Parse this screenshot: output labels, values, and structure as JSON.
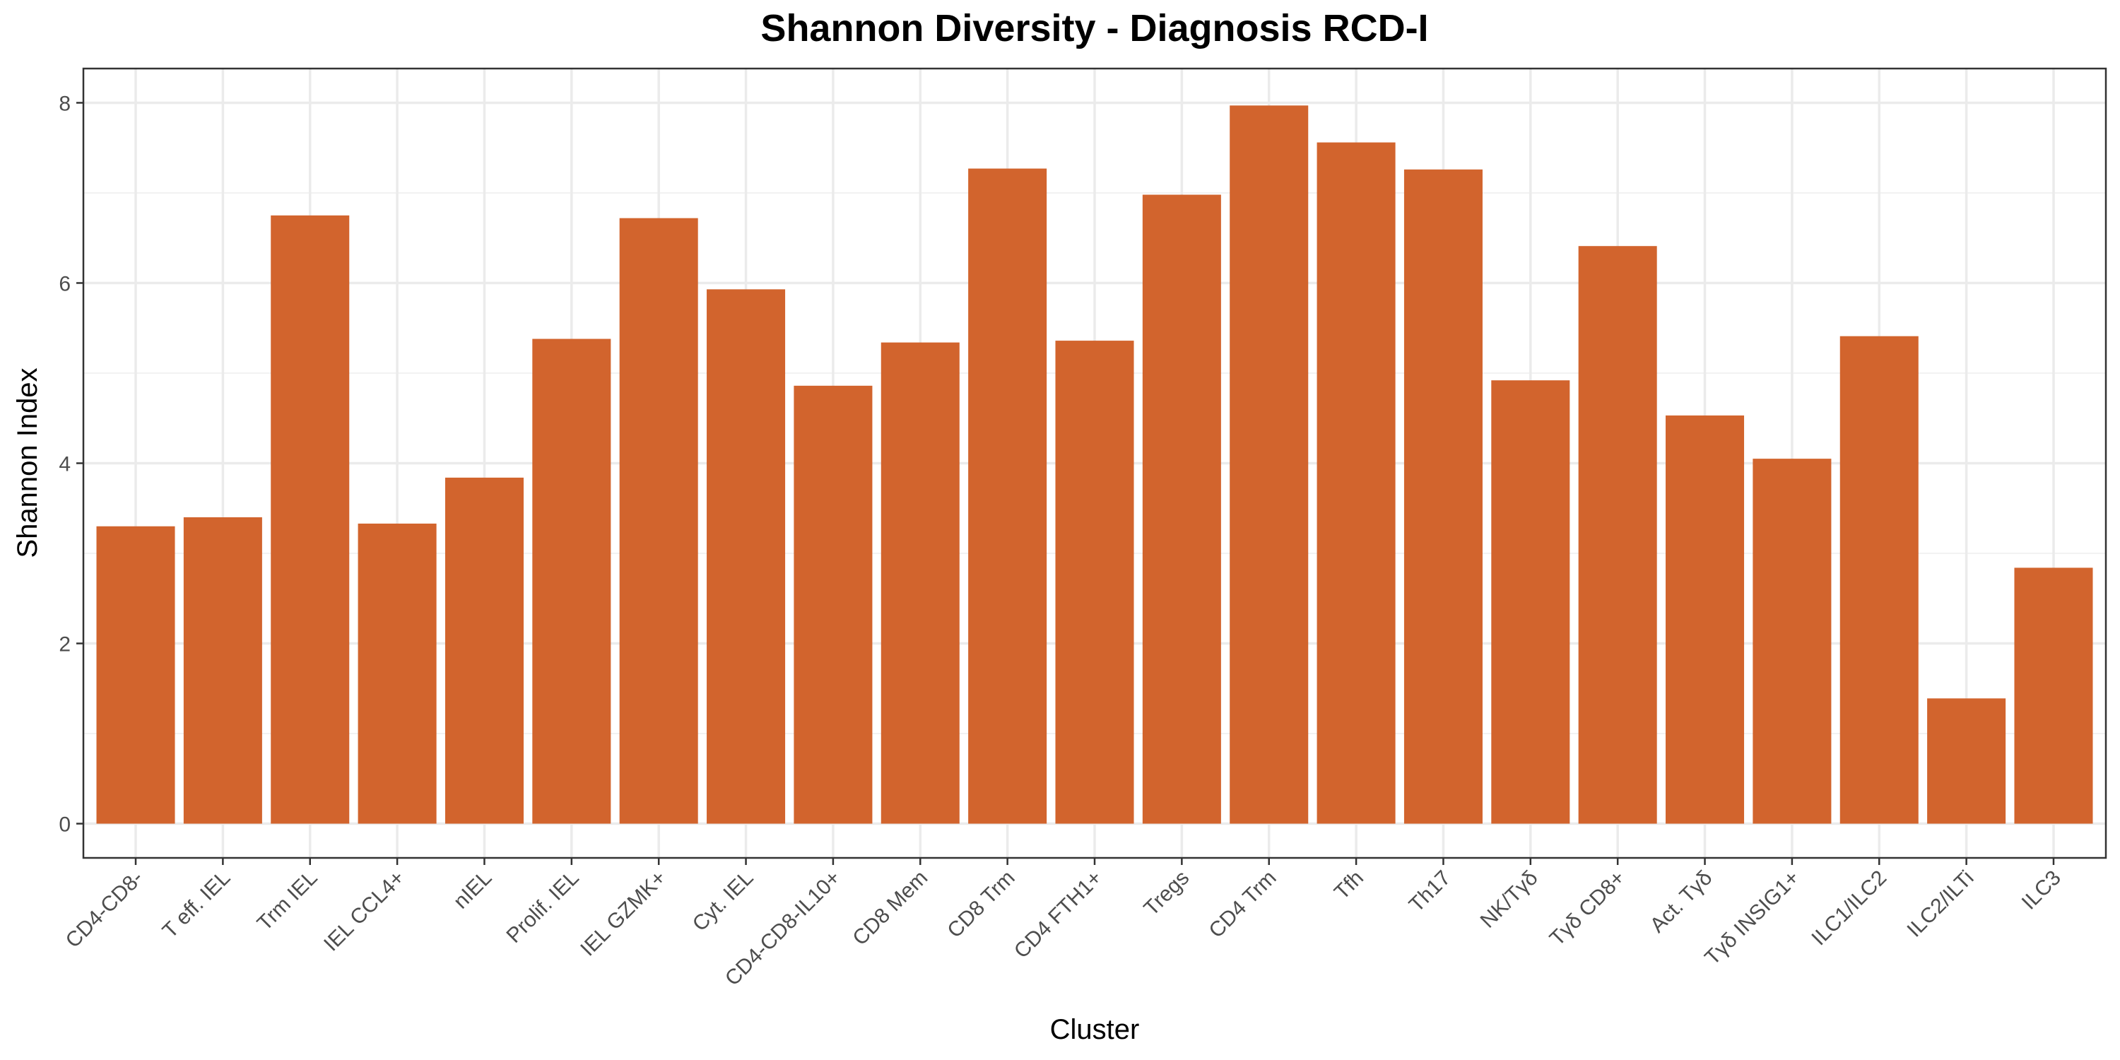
{
  "chart_data": {
    "type": "bar",
    "title": "Shannon Diversity - Diagnosis RCD-I",
    "xlabel": "Cluster",
    "ylabel": "Shannon Index",
    "categories": [
      "CD4-CD8-",
      "T eff. IEL",
      "Trm IEL",
      "IEL CCL4+",
      "nIEL",
      "Prolif. IEL",
      "IEL GZMK+",
      "Cyt. IEL",
      "CD4-CD8-IL10+",
      "CD8 Mem",
      "CD8 Trm",
      "CD4 FTH1+",
      "Tregs",
      "CD4 Trm",
      "Tfh",
      "Th17",
      "NK/Tγδ",
      "Tγδ CD8+",
      "Act. Tγδ",
      "Tγδ INSIG1+",
      "ILC1/ILC2",
      "ILC2/ILTi",
      "ILC3"
    ],
    "values": [
      3.3,
      3.4,
      6.75,
      3.33,
      3.84,
      5.38,
      6.72,
      5.93,
      4.86,
      5.34,
      7.27,
      5.36,
      6.98,
      7.97,
      7.56,
      7.26,
      4.92,
      6.41,
      4.53,
      4.05,
      5.41,
      1.39,
      2.84
    ],
    "ylim": [
      -0.38,
      8.38
    ],
    "yticks": [
      0,
      2,
      4,
      6,
      8
    ],
    "grid": true,
    "legend": "none",
    "bar_color": "#d2642d"
  }
}
